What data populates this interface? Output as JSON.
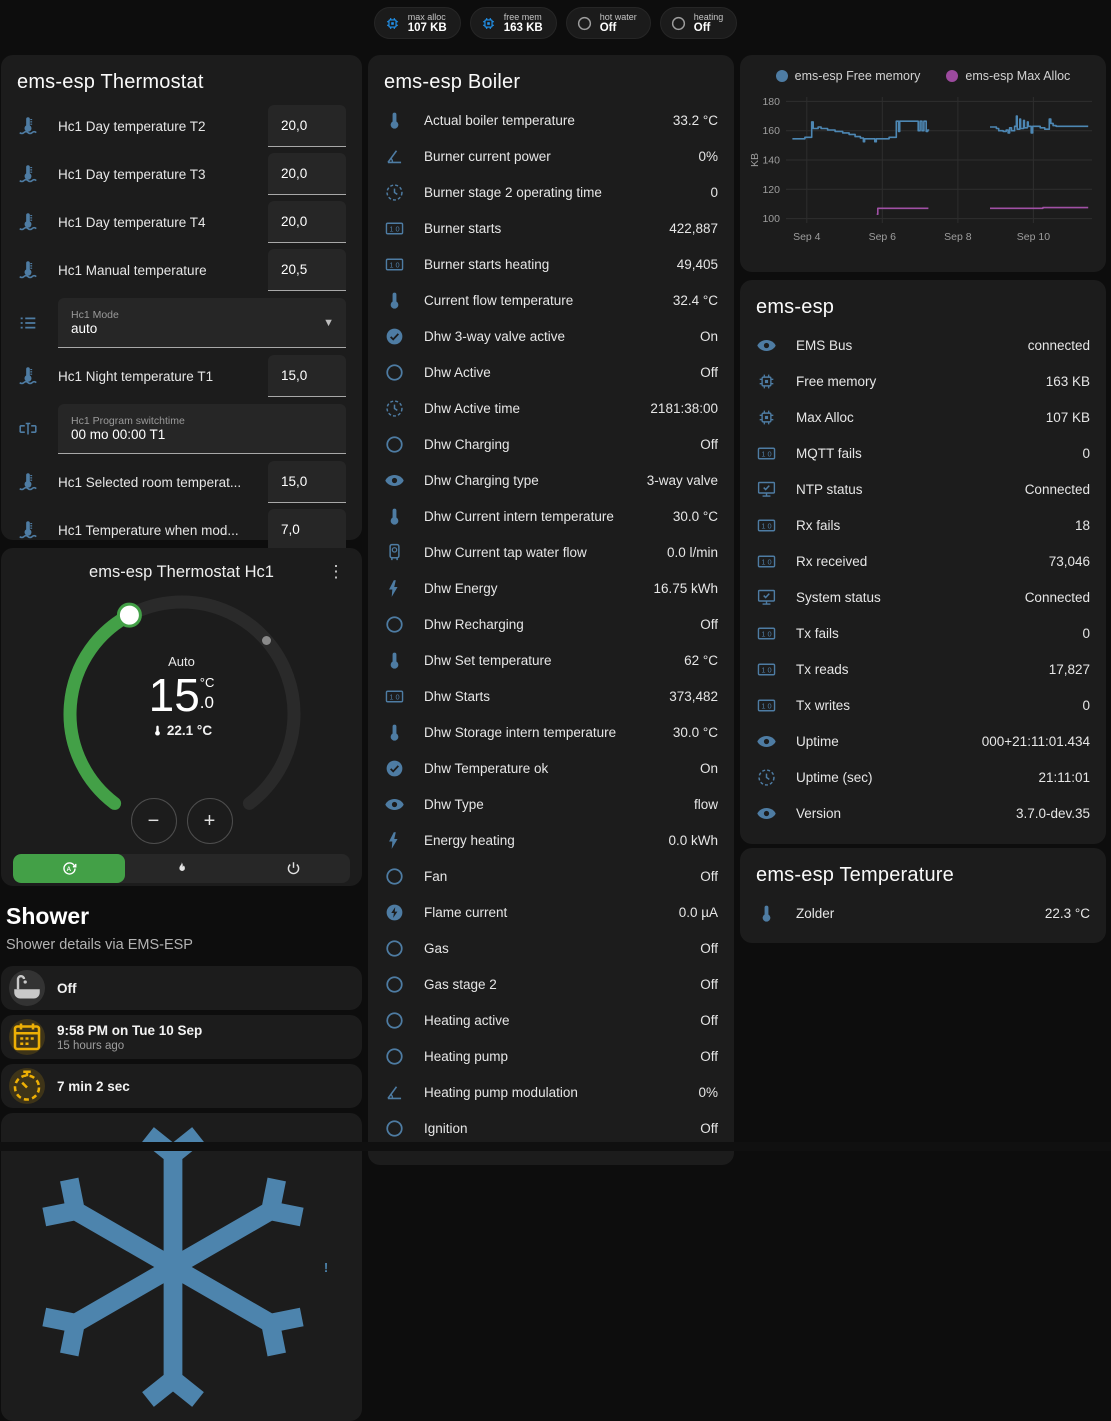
{
  "pills": [
    {
      "label": "max alloc",
      "value": "107 KB",
      "icon": "chip",
      "color": "blue"
    },
    {
      "label": "free mem",
      "value": "163 KB",
      "icon": "chip",
      "color": "blue"
    },
    {
      "label": "hot water",
      "value": "Off",
      "icon": "circle",
      "color": "gray"
    },
    {
      "label": "heating",
      "value": "Off",
      "icon": "circle",
      "color": "gray"
    }
  ],
  "thermostat_card": {
    "title": "ems-esp Thermostat",
    "rows": [
      {
        "type": "number",
        "icon": "thermometer-water",
        "label": "Hc1 Day temperature T2",
        "value": "20,0"
      },
      {
        "type": "number",
        "icon": "thermometer-water",
        "label": "Hc1 Day temperature T3",
        "value": "20,0"
      },
      {
        "type": "number",
        "icon": "thermometer-water",
        "label": "Hc1 Day temperature T4",
        "value": "20,0"
      },
      {
        "type": "number",
        "icon": "thermometer-water",
        "label": "Hc1 Manual temperature",
        "value": "20,5"
      },
      {
        "type": "select",
        "icon": "list",
        "label": "Hc1 Mode",
        "value": "auto"
      },
      {
        "type": "number",
        "icon": "thermometer-water",
        "label": "Hc1 Night temperature T1",
        "value": "15,0"
      },
      {
        "type": "text",
        "icon": "valve",
        "label": "Hc1 Program switchtime",
        "value": "00 mo 00:00 T1"
      },
      {
        "type": "number",
        "icon": "thermometer-water",
        "label": "Hc1 Selected room temperat...",
        "value": "15,0"
      },
      {
        "type": "number",
        "icon": "thermometer-water",
        "label": "Hc1 Temperature when mod...",
        "value": "7,0"
      }
    ]
  },
  "dial_card": {
    "title": "ems-esp Thermostat Hc1",
    "menu_glyph": "⋮",
    "mode_label": "Auto",
    "target_int": "15",
    "target_unit": "°C",
    "target_frac": ".0",
    "current_temp": "22.1 °C",
    "minus_glyph": "−",
    "plus_glyph": "+"
  },
  "shower": {
    "heading": "Shower",
    "subtitle": "Shower details via EMS-ESP",
    "tiles": [
      {
        "icon": "bathtub",
        "color": "gray2",
        "primary": "Off"
      },
      {
        "icon": "calendar",
        "color": "amber",
        "primary": "9:58 PM on Tue 10 Sep",
        "secondary": "15 hours ago"
      },
      {
        "icon": "timer",
        "color": "amber",
        "primary": "7 min 2 sec"
      },
      {
        "icon": "snowflake",
        "variant": "center",
        "badge": "!"
      }
    ]
  },
  "boiler_card": {
    "title": "ems-esp Boiler",
    "rows": [
      {
        "icon": "thermometer",
        "label": "Actual boiler temperature",
        "value": "33.2 °C"
      },
      {
        "icon": "angle",
        "label": "Burner current power",
        "value": "0%"
      },
      {
        "icon": "clock",
        "label": "Burner stage 2 operating time",
        "value": "0"
      },
      {
        "icon": "counter",
        "label": "Burner starts",
        "value": "422,887"
      },
      {
        "icon": "counter",
        "label": "Burner starts heating",
        "value": "49,405"
      },
      {
        "icon": "thermometer",
        "label": "Current flow temperature",
        "value": "32.4 °C"
      },
      {
        "icon": "check-circle",
        "label": "Dhw 3-way valve active",
        "value": "On"
      },
      {
        "icon": "circle",
        "label": "Dhw Active",
        "value": "Off"
      },
      {
        "icon": "clock",
        "label": "Dhw Active time",
        "value": "2181:38:00"
      },
      {
        "icon": "circle",
        "label": "Dhw Charging",
        "value": "Off"
      },
      {
        "icon": "eye",
        "label": "Dhw Charging type",
        "value": "3-way valve"
      },
      {
        "icon": "thermometer",
        "label": "Dhw Current intern temperature",
        "value": "30.0 °C"
      },
      {
        "icon": "water-boiler",
        "label": "Dhw Current tap water flow",
        "value": "0.0 l/min"
      },
      {
        "icon": "flash",
        "label": "Dhw Energy",
        "value": "16.75 kWh"
      },
      {
        "icon": "circle",
        "label": "Dhw Recharging",
        "value": "Off"
      },
      {
        "icon": "thermometer",
        "label": "Dhw Set temperature",
        "value": "62 °C"
      },
      {
        "icon": "counter",
        "label": "Dhw Starts",
        "value": "373,482"
      },
      {
        "icon": "thermometer",
        "label": "Dhw Storage intern temperature",
        "value": "30.0 °C"
      },
      {
        "icon": "check-circle",
        "label": "Dhw Temperature ok",
        "value": "On"
      },
      {
        "icon": "eye",
        "label": "Dhw Type",
        "value": "flow"
      },
      {
        "icon": "flash",
        "label": "Energy heating",
        "value": "0.0 kWh"
      },
      {
        "icon": "circle",
        "label": "Fan",
        "value": "Off"
      },
      {
        "icon": "current-ac",
        "label": "Flame current",
        "value": "0.0 µA"
      },
      {
        "icon": "circle",
        "label": "Gas",
        "value": "Off"
      },
      {
        "icon": "circle",
        "label": "Gas stage 2",
        "value": "Off"
      },
      {
        "icon": "circle",
        "label": "Heating active",
        "value": "Off"
      },
      {
        "icon": "circle",
        "label": "Heating pump",
        "value": "Off"
      },
      {
        "icon": "angle",
        "label": "Heating pump modulation",
        "value": "0%"
      },
      {
        "icon": "circle",
        "label": "Ignition",
        "value": "Off"
      }
    ]
  },
  "esp_card": {
    "title": "ems-esp",
    "rows": [
      {
        "icon": "eye",
        "label": "EMS Bus",
        "value": "connected"
      },
      {
        "icon": "chip",
        "label": "Free memory",
        "value": "163 KB"
      },
      {
        "icon": "chip",
        "label": "Max Alloc",
        "value": "107 KB"
      },
      {
        "icon": "counter",
        "label": "MQTT fails",
        "value": "0"
      },
      {
        "icon": "monitor-check",
        "label": "NTP status",
        "value": "Connected"
      },
      {
        "icon": "counter",
        "label": "Rx fails",
        "value": "18"
      },
      {
        "icon": "counter",
        "label": "Rx received",
        "value": "73,046"
      },
      {
        "icon": "monitor-check",
        "label": "System status",
        "value": "Connected"
      },
      {
        "icon": "counter",
        "label": "Tx fails",
        "value": "0"
      },
      {
        "icon": "counter",
        "label": "Tx reads",
        "value": "17,827"
      },
      {
        "icon": "counter",
        "label": "Tx writes",
        "value": "0"
      },
      {
        "icon": "eye",
        "label": "Uptime",
        "value": "000+21:11:01.434"
      },
      {
        "icon": "clock",
        "label": "Uptime (sec)",
        "value": "21:11:01"
      },
      {
        "icon": "eye",
        "label": "Version",
        "value": "3.7.0-dev.35"
      }
    ]
  },
  "temp_card": {
    "title": "ems-esp Temperature",
    "rows": [
      {
        "icon": "thermometer",
        "label": "Zolder",
        "value": "22.3 °C"
      }
    ]
  },
  "chart_data": {
    "type": "line",
    "title": "",
    "ylabel": "KB",
    "xlabel": "",
    "ylim": [
      97,
      183
    ],
    "xlim": [
      3.45,
      11.55
    ],
    "yticks": [
      100,
      120,
      140,
      160,
      180
    ],
    "xticks": [
      {
        "v": 4,
        "label": "Sep 4"
      },
      {
        "v": 6,
        "label": "Sep 6"
      },
      {
        "v": 8,
        "label": "Sep 8"
      },
      {
        "v": 10,
        "label": "Sep 10"
      }
    ],
    "legend_position": "top",
    "grid": true,
    "series": [
      {
        "name": "ems-esp Free memory",
        "color": "#4d87b3",
        "dot": "#4e7ca3",
        "segments": [
          [
            [
              3.62,
              154.5
            ],
            [
              3.95,
              154.5
            ],
            [
              3.95,
              155.5
            ],
            [
              4.13,
              155.5
            ],
            [
              4.13,
              166
            ],
            [
              4.17,
              166
            ],
            [
              4.17,
              161.5
            ],
            [
              4.3,
              161.5
            ],
            [
              4.3,
              162.5
            ],
            [
              4.38,
              162.5
            ],
            [
              4.38,
              161.5
            ],
            [
              4.55,
              161.5
            ],
            [
              4.55,
              160.5
            ],
            [
              4.75,
              160.5
            ],
            [
              4.75,
              159.5
            ],
            [
              4.95,
              159.5
            ],
            [
              4.95,
              158.5
            ],
            [
              5.12,
              158.5
            ],
            [
              5.12,
              157.5
            ],
            [
              5.28,
              157.5
            ],
            [
              5.28,
              156
            ],
            [
              5.42,
              156
            ],
            [
              5.42,
              155
            ],
            [
              5.5,
              155
            ],
            [
              5.5,
              152.5
            ],
            [
              5.53,
              152.5
            ],
            [
              5.53,
              154.5
            ],
            [
              5.8,
              154.5
            ],
            [
              5.8,
              152.5
            ],
            [
              5.84,
              152.5
            ],
            [
              5.84,
              154.5
            ],
            [
              6.18,
              154.5
            ],
            [
              6.18,
              155.5
            ],
            [
              6.37,
              155.5
            ],
            [
              6.37,
              166.5
            ],
            [
              6.43,
              166.5
            ],
            [
              6.43,
              159.5
            ],
            [
              6.46,
              159.5
            ],
            [
              6.46,
              166.5
            ],
            [
              6.95,
              166.5
            ],
            [
              6.95,
              160
            ],
            [
              7.0,
              160
            ],
            [
              7.0,
              166.5
            ],
            [
              7.05,
              166.5
            ],
            [
              7.05,
              160
            ],
            [
              7.1,
              160
            ],
            [
              7.1,
              166.5
            ],
            [
              7.16,
              166.5
            ],
            [
              7.16,
              159.5
            ],
            [
              7.2,
              159.5
            ],
            [
              7.2,
              160.5
            ],
            [
              7.24,
              160.5
            ]
          ],
          [
            [
              8.85,
              162.5
            ],
            [
              9.02,
              162.5
            ],
            [
              9.02,
              161.5
            ],
            [
              9.08,
              161.5
            ],
            [
              9.08,
              160
            ],
            [
              9.2,
              160
            ],
            [
              9.2,
              159.5
            ],
            [
              9.28,
              159.5
            ],
            [
              9.28,
              160.5
            ],
            [
              9.33,
              160.5
            ],
            [
              9.33,
              158.5
            ],
            [
              9.37,
              158.5
            ],
            [
              9.37,
              162
            ],
            [
              9.42,
              162
            ],
            [
              9.42,
              160
            ],
            [
              9.5,
              160
            ],
            [
              9.5,
              163
            ],
            [
              9.55,
              163
            ],
            [
              9.55,
              170
            ],
            [
              9.57,
              170
            ],
            [
              9.57,
              161
            ],
            [
              9.64,
              161
            ],
            [
              9.64,
              168
            ],
            [
              9.66,
              168
            ],
            [
              9.66,
              161.5
            ],
            [
              9.74,
              161.5
            ],
            [
              9.74,
              167
            ],
            [
              9.76,
              167
            ],
            [
              9.76,
              162
            ],
            [
              9.84,
              162
            ],
            [
              9.84,
              166
            ],
            [
              9.86,
              166
            ],
            [
              9.86,
              163
            ],
            [
              9.94,
              163
            ],
            [
              9.94,
              158.5
            ],
            [
              9.98,
              158.5
            ],
            [
              9.98,
              163
            ],
            [
              10.18,
              163
            ],
            [
              10.18,
              162
            ],
            [
              10.3,
              162
            ],
            [
              10.3,
              161
            ],
            [
              10.42,
              161
            ],
            [
              10.42,
              168
            ],
            [
              10.46,
              168
            ],
            [
              10.46,
              165
            ],
            [
              10.52,
              165
            ],
            [
              10.52,
              163.5
            ],
            [
              10.6,
              163.5
            ],
            [
              10.6,
              163
            ],
            [
              11.45,
              163
            ]
          ]
        ]
      },
      {
        "name": "ems-esp Max Alloc",
        "color": "#a050a5",
        "dot": "#9c4a9e",
        "segments": [
          [
            [
              5.85,
              103
            ],
            [
              5.88,
              103
            ],
            [
              5.88,
              107
            ],
            [
              7.22,
              107
            ]
          ],
          [
            [
              8.85,
              107
            ],
            [
              10.25,
              107
            ],
            [
              10.25,
              107.5
            ],
            [
              11.45,
              107.5
            ]
          ]
        ]
      }
    ]
  }
}
